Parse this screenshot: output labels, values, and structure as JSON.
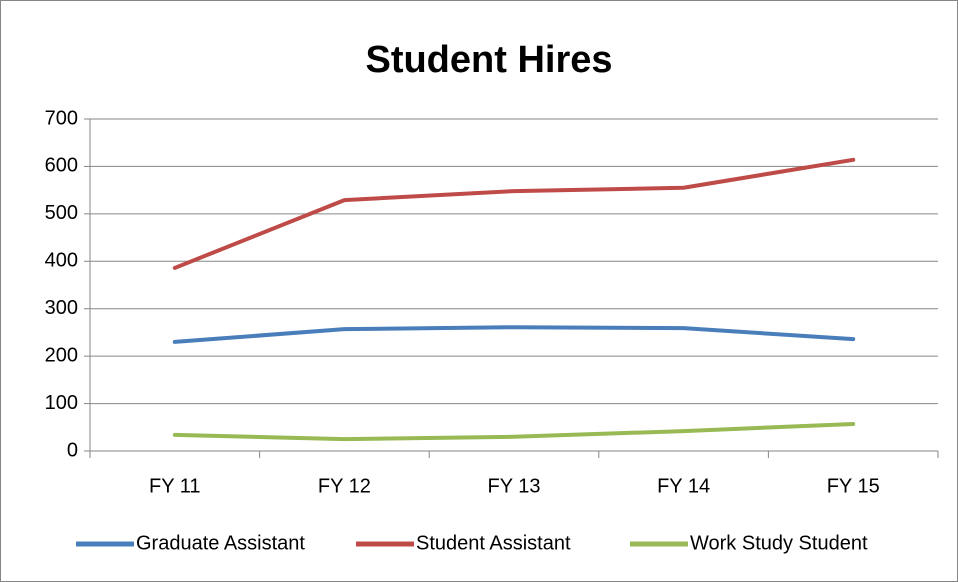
{
  "chart_data": {
    "type": "line",
    "title": "Student Hires",
    "categories": [
      "FY 11",
      "FY 12",
      "FY 13",
      "FY 14",
      "FY 15"
    ],
    "series": [
      {
        "name": "Graduate Assistant",
        "color": "#4a7ebb",
        "values": [
          230,
          257,
          261,
          259,
          236
        ]
      },
      {
        "name": "Student Assistant",
        "color": "#be4b48",
        "values": [
          386,
          529,
          548,
          555,
          614
        ]
      },
      {
        "name": "Work Study Student",
        "color": "#98b954",
        "values": [
          34,
          25,
          30,
          42,
          57
        ]
      }
    ],
    "ylim": [
      0,
      700
    ],
    "yticks": [
      0,
      100,
      200,
      300,
      400,
      500,
      600,
      700
    ],
    "grid": true,
    "legend": "bottom"
  }
}
